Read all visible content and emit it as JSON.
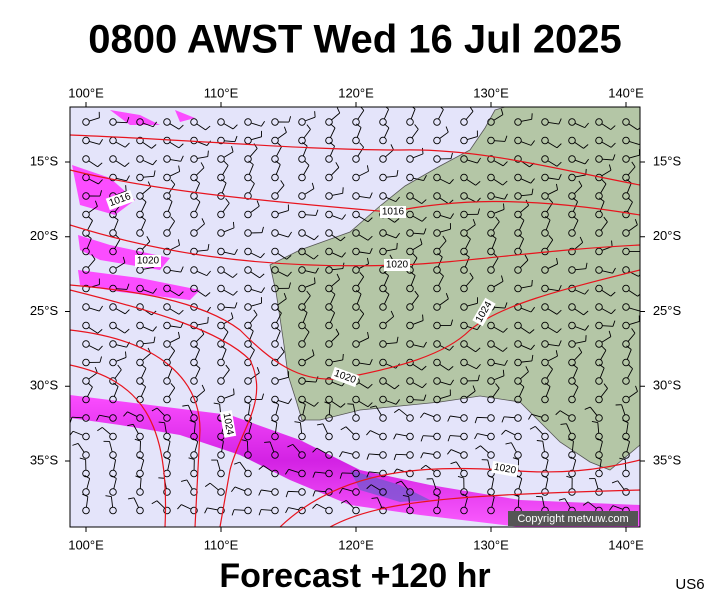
{
  "header": {
    "title": "0800 AWST Wed 16 Jul 2025"
  },
  "map": {
    "lon_ticks": [
      {
        "value": 100,
        "label": "100°E"
      },
      {
        "value": 110,
        "label": "110°E"
      },
      {
        "value": 120,
        "label": "120°E"
      },
      {
        "value": 130,
        "label": "130°E"
      },
      {
        "value": 140,
        "label": "140°E"
      }
    ],
    "lat_ticks": [
      {
        "value": 15,
        "label": "15°S"
      },
      {
        "value": 20,
        "label": "20°S"
      },
      {
        "value": 25,
        "label": "25°S"
      },
      {
        "value": 30,
        "label": "30°S"
      },
      {
        "value": 35,
        "label": "35°S"
      }
    ],
    "isobar_labels": [
      "1016",
      "1016",
      "1020",
      "1020",
      "1024",
      "1024",
      "1020",
      "1020"
    ],
    "copyright": "Copyright metvuw.com"
  },
  "footer": {
    "forecast": "Forecast +120 hr",
    "code": "US6"
  }
}
